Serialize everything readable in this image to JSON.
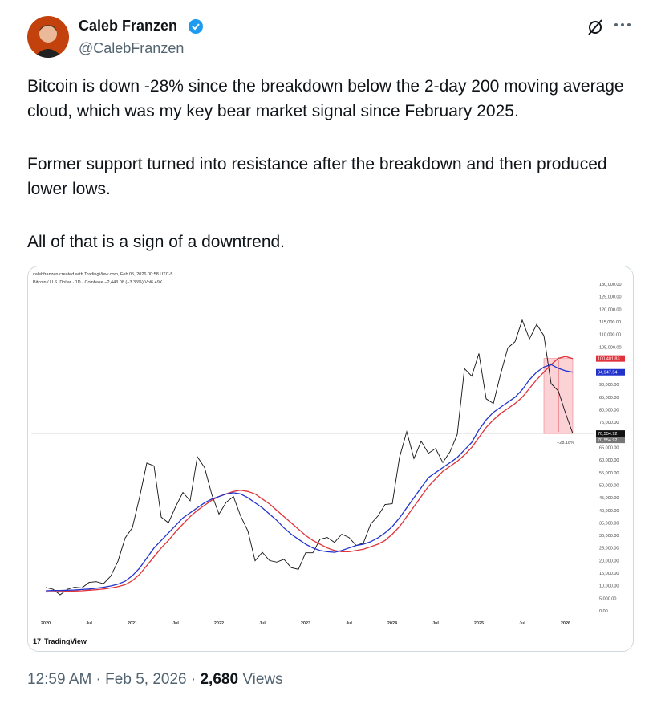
{
  "tweet": {
    "name": "Caleb Franzen",
    "handle": "@CalebFranzen",
    "body": [
      "Bitcoin is down -28% since the breakdown below the 2-day 200 moving average cloud, which was my key bear market signal since February 2025.",
      "Former support turned into resistance after the breakdown and then produced lower lows.",
      "All of that is a sign of a downtrend."
    ],
    "time": "12:59 AM",
    "date": "Feb 5, 2026",
    "views": "2,680",
    "views_label": "Views"
  },
  "chart_data": {
    "type": "line",
    "header": "calebfranzen created with TradingView.com, Feb 05, 2026 00:58 UTC-5",
    "subtitle": "Bitcoin / U.S. Dollar · 1D · Coinbase  −2,443.08 (−3.35%)  Vol6.49K",
    "brand": "TradingView",
    "x": [
      "2020-01",
      "2020-02",
      "2020-03",
      "2020-04",
      "2020-05",
      "2020-06",
      "2020-07",
      "2020-08",
      "2020-09",
      "2020-10",
      "2020-11",
      "2020-12",
      "2021-01",
      "2021-02",
      "2021-03",
      "2021-04",
      "2021-05",
      "2021-06",
      "2021-07",
      "2021-08",
      "2021-09",
      "2021-10",
      "2021-11",
      "2021-12",
      "2022-01",
      "2022-02",
      "2022-03",
      "2022-04",
      "2022-05",
      "2022-06",
      "2022-07",
      "2022-08",
      "2022-09",
      "2022-10",
      "2022-11",
      "2022-12",
      "2023-01",
      "2023-02",
      "2023-03",
      "2023-04",
      "2023-05",
      "2023-06",
      "2023-07",
      "2023-08",
      "2023-09",
      "2023-10",
      "2023-11",
      "2023-12",
      "2024-01",
      "2024-02",
      "2024-03",
      "2024-04",
      "2024-05",
      "2024-06",
      "2024-07",
      "2024-08",
      "2024-09",
      "2024-10",
      "2024-11",
      "2024-12",
      "2025-01",
      "2025-02",
      "2025-03",
      "2025-04",
      "2025-05",
      "2025-06",
      "2025-07",
      "2025-08",
      "2025-09",
      "2025-10",
      "2025-11",
      "2025-12",
      "2026-01",
      "2026-02"
    ],
    "series": [
      {
        "name": "Bitcoin",
        "color": "#111111",
        "values": [
          9300,
          8600,
          6400,
          8600,
          9400,
          9100,
          11300,
          11600,
          10800,
          13800,
          19700,
          29000,
          33100,
          45200,
          58800,
          57700,
          37300,
          35000,
          41500,
          47100,
          43800,
          61300,
          57000,
          46300,
          38500,
          43200,
          45500,
          37700,
          31800,
          19900,
          23300,
          20000,
          19400,
          20500,
          17200,
          16500,
          23100,
          23100,
          28500,
          29200,
          27200,
          30500,
          29200,
          26000,
          27000,
          34500,
          37700,
          42300,
          42600,
          61100,
          71300,
          60600,
          67500,
          62700,
          64600,
          59000,
          63300,
          70200,
          96400,
          93400,
          102400,
          84400,
          82500,
          94200,
          104600,
          107100,
          115700,
          108200,
          114000,
          109500,
          90400,
          87500,
          78600,
          70554.92
        ],
        "value_labels": [
          null,
          null,
          null,
          null,
          null,
          null,
          null,
          null,
          null,
          null,
          null,
          null,
          null,
          null,
          null,
          null,
          null,
          null,
          null,
          null,
          null,
          null,
          null,
          null,
          null,
          null,
          null,
          null,
          null,
          null,
          null,
          null,
          null,
          null,
          null,
          null,
          null,
          null,
          null,
          null,
          null,
          null,
          null,
          null,
          null,
          null,
          null,
          null,
          null,
          null,
          null,
          null,
          null,
          null,
          null,
          null,
          null,
          null,
          null,
          null,
          null,
          null,
          null,
          null,
          null,
          null,
          null,
          null,
          null,
          null,
          null,
          null,
          null,
          "70,554.92"
        ]
      },
      {
        "name": "200 MA (red)",
        "color": "#e0323a",
        "values": [
          7500,
          7600,
          7700,
          7800,
          7900,
          8000,
          8200,
          8400,
          8700,
          9100,
          9600,
          10400,
          12000,
          14500,
          18000,
          21500,
          25000,
          28000,
          31500,
          34500,
          37500,
          40000,
          42000,
          44000,
          45500,
          46500,
          47500,
          48000,
          47500,
          46500,
          44500,
          42500,
          40000,
          37500,
          35000,
          32500,
          30000,
          28000,
          26500,
          25000,
          24000,
          23500,
          23500,
          24000,
          24500,
          25500,
          26500,
          28000,
          30500,
          33500,
          37500,
          41500,
          45500,
          49500,
          52500,
          55500,
          57500,
          59500,
          62000,
          65000,
          69000,
          73000,
          76000,
          78500,
          80500,
          82500,
          85000,
          88500,
          92000,
          95000,
          98000,
          100500,
          101200,
          100401.83
        ],
        "value_labels": [
          null,
          null,
          null,
          null,
          null,
          null,
          null,
          null,
          null,
          null,
          null,
          null,
          null,
          null,
          null,
          null,
          null,
          null,
          null,
          null,
          null,
          null,
          null,
          null,
          null,
          null,
          null,
          null,
          null,
          null,
          null,
          null,
          null,
          null,
          null,
          null,
          null,
          null,
          null,
          null,
          null,
          null,
          null,
          null,
          null,
          null,
          null,
          null,
          null,
          null,
          null,
          null,
          null,
          null,
          null,
          null,
          null,
          null,
          null,
          null,
          null,
          null,
          null,
          null,
          null,
          null,
          null,
          null,
          null,
          null,
          null,
          null,
          null,
          "100,401.83"
        ]
      },
      {
        "name": "200 MA (blue)",
        "color": "#2233cc",
        "values": [
          8000,
          8100,
          8100,
          8200,
          8300,
          8500,
          8700,
          9000,
          9400,
          9900,
          10600,
          11800,
          14000,
          17000,
          21000,
          25000,
          28000,
          31000,
          34000,
          37000,
          39000,
          41000,
          43000,
          44500,
          45500,
          46500,
          47000,
          46500,
          45000,
          43000,
          41000,
          38500,
          36000,
          33000,
          30500,
          28500,
          26500,
          25000,
          24000,
          23500,
          23300,
          24000,
          25000,
          26000,
          26500,
          27500,
          29000,
          31000,
          33500,
          37000,
          41000,
          45000,
          49000,
          53000,
          55000,
          57000,
          59000,
          61000,
          64000,
          67000,
          72000,
          76000,
          79000,
          81000,
          83000,
          85000,
          88000,
          92000,
          95000,
          97000,
          98000,
          96500,
          95500,
          94947.54
        ],
        "value_labels": [
          null,
          null,
          null,
          null,
          null,
          null,
          null,
          null,
          null,
          null,
          null,
          null,
          null,
          null,
          null,
          null,
          null,
          null,
          null,
          null,
          null,
          null,
          null,
          null,
          null,
          null,
          null,
          null,
          null,
          null,
          null,
          null,
          null,
          null,
          null,
          null,
          null,
          null,
          null,
          null,
          null,
          null,
          null,
          null,
          null,
          null,
          null,
          null,
          null,
          null,
          null,
          null,
          null,
          null,
          null,
          null,
          null,
          null,
          null,
          null,
          null,
          null,
          null,
          null,
          null,
          null,
          null,
          null,
          null,
          null,
          null,
          null,
          null,
          "94,947.54"
        ]
      }
    ],
    "annotations": [
      {
        "text": "−28.18%",
        "x": "2026-01",
        "y": 67000
      },
      {
        "text": "70,554.92",
        "x": "2026-02",
        "y": 70554.92
      }
    ],
    "xlim": [
      "2019-11",
      "2026-05"
    ],
    "xticks": [
      {
        "value": "2020-01",
        "label": "2020"
      },
      {
        "value": "2020-07",
        "label": "Jul"
      },
      {
        "value": "2021-01",
        "label": "2021"
      },
      {
        "value": "2021-07",
        "label": "Jul"
      },
      {
        "value": "2022-01",
        "label": "2022"
      },
      {
        "value": "2022-07",
        "label": "Jul"
      },
      {
        "value": "2023-01",
        "label": "2023"
      },
      {
        "value": "2023-07",
        "label": "Jul"
      },
      {
        "value": "2024-01",
        "label": "2024"
      },
      {
        "value": "2024-07",
        "label": "Jul"
      },
      {
        "value": "2025-01",
        "label": "2025"
      },
      {
        "value": "2025-07",
        "label": "Jul"
      },
      {
        "value": "2026-01",
        "label": "2026"
      }
    ],
    "ylim": [
      0,
      130000
    ],
    "yticks": [
      {
        "value": 0,
        "label": "0.00"
      },
      {
        "value": 5000,
        "label": "5,000.00"
      },
      {
        "value": 10000,
        "label": "10,000.00"
      },
      {
        "value": 15000,
        "label": "15,000.00"
      },
      {
        "value": 20000,
        "label": "20,000.00"
      },
      {
        "value": 25000,
        "label": "25,000.00"
      },
      {
        "value": 30000,
        "label": "30,000.00"
      },
      {
        "value": 35000,
        "label": "35,000.00"
      },
      {
        "value": 40000,
        "label": "40,000.00"
      },
      {
        "value": 45000,
        "label": "45,000.00"
      },
      {
        "value": 50000,
        "label": "50,000.00"
      },
      {
        "value": 55000,
        "label": "55,000.00"
      },
      {
        "value": 60000,
        "label": "60,000.00"
      },
      {
        "value": 65000,
        "label": "65,000.00"
      },
      {
        "value": 70000,
        "label": "70,000.00"
      },
      {
        "value": 75000,
        "label": "75,000.00"
      },
      {
        "value": 80000,
        "label": "80,000.00"
      },
      {
        "value": 85000,
        "label": "85,000.00"
      },
      {
        "value": 90000,
        "label": "90,000.00"
      },
      {
        "value": 95000,
        "label": "95,000.00"
      },
      {
        "value": 100000,
        "label": "100,000.00"
      },
      {
        "value": 105000,
        "label": "105,000.00"
      },
      {
        "value": 110000,
        "label": "110,000.00"
      },
      {
        "value": 115000,
        "label": "115,000.00"
      },
      {
        "value": 120000,
        "label": "120,000.00"
      },
      {
        "value": 125000,
        "label": "125,000.00"
      },
      {
        "value": 130000,
        "label": "130,000.00"
      }
    ],
    "grid": false
  }
}
